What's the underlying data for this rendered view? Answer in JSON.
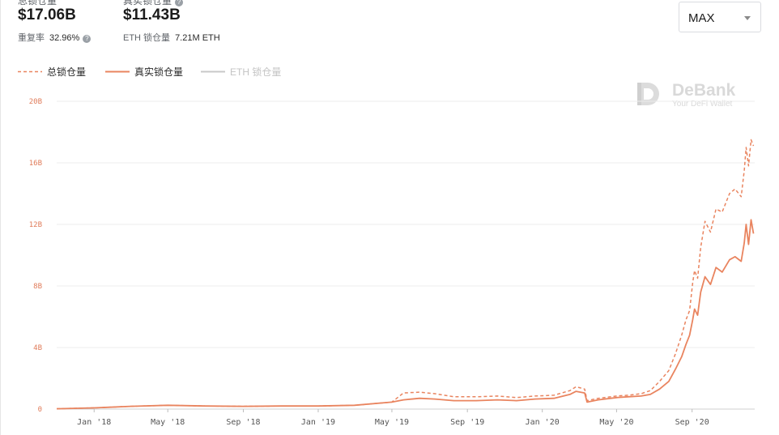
{
  "header": {
    "total": {
      "label": "总锁仓量",
      "value": "$17.06B",
      "sub_label": "重复率",
      "sub_value": "32.96%",
      "help_icon": "question-circle-icon"
    },
    "real": {
      "label": "真实锁仓量",
      "value": "$11.43B",
      "sub_label": "ETH 锁仓量",
      "sub_value": "7.21M ETH",
      "help_icon": "question-circle-icon"
    }
  },
  "range_select": {
    "value": "MAX",
    "icon": "caret-down-icon"
  },
  "legend": [
    {
      "name": "总锁仓量",
      "style": "dashed",
      "color": "#e9845f",
      "active": true
    },
    {
      "name": "真实锁仓量",
      "style": "solid",
      "color": "#e9845f",
      "active": true
    },
    {
      "name": "ETH  锁仓量",
      "style": "solid",
      "color": "#c8c8c8",
      "active": false
    }
  ],
  "watermark": {
    "brand": "DeBank",
    "tagline": "Your DeFi Wallet",
    "icon": "debank-logo-icon"
  },
  "chart_data": {
    "type": "line",
    "title": "",
    "xlabel": "",
    "ylabel": "",
    "y_unit": "B USD",
    "ylim": [
      0,
      20
    ],
    "y_ticks": [
      0,
      4,
      8,
      12,
      16,
      20
    ],
    "y_tick_labels": [
      "0",
      "4B",
      "8B",
      "12B",
      "16B",
      "20B"
    ],
    "xlim": [
      "2017-11-01",
      "2020-12-12"
    ],
    "x_ticks": [
      "2018-01-01",
      "2018-05-01",
      "2018-09-01",
      "2019-01-01",
      "2019-05-01",
      "2019-09-01",
      "2020-01-01",
      "2020-05-01",
      "2020-09-01"
    ],
    "x_tick_labels": [
      "Jan '18",
      "May '18",
      "Sep '18",
      "Jan '19",
      "May '19",
      "Sep '19",
      "Jan '20",
      "May '20",
      "Sep '20"
    ],
    "grid": true,
    "legend_position": "top-left",
    "series": [
      {
        "name": "总锁仓量",
        "style": "dashed",
        "color": "#e9845f",
        "x": [
          "2017-11-01",
          "2018-01-01",
          "2018-03-01",
          "2018-05-01",
          "2018-07-01",
          "2018-09-01",
          "2018-11-01",
          "2019-01-01",
          "2019-03-01",
          "2019-05-01",
          "2019-05-20",
          "2019-06-15",
          "2019-07-10",
          "2019-08-10",
          "2019-09-15",
          "2019-10-20",
          "2019-11-20",
          "2019-12-20",
          "2020-01-20",
          "2020-02-15",
          "2020-02-25",
          "2020-03-10",
          "2020-03-14",
          "2020-04-01",
          "2020-05-01",
          "2020-05-20",
          "2020-06-10",
          "2020-06-25",
          "2020-07-10",
          "2020-07-25",
          "2020-08-05",
          "2020-08-15",
          "2020-08-22",
          "2020-08-28",
          "2020-09-02",
          "2020-09-05",
          "2020-09-10",
          "2020-09-15",
          "2020-09-22",
          "2020-10-01",
          "2020-10-10",
          "2020-10-20",
          "2020-11-01",
          "2020-11-10",
          "2020-11-20",
          "2020-11-25",
          "2020-11-28",
          "2020-12-02",
          "2020-12-06",
          "2020-12-10"
        ],
        "y": [
          0.02,
          0.08,
          0.18,
          0.25,
          0.2,
          0.18,
          0.2,
          0.2,
          0.25,
          0.45,
          1.05,
          1.1,
          1.0,
          0.8,
          0.8,
          0.85,
          0.75,
          0.85,
          0.9,
          1.2,
          1.45,
          1.3,
          0.55,
          0.7,
          0.85,
          0.9,
          1.0,
          1.2,
          1.8,
          2.5,
          3.6,
          4.8,
          5.8,
          6.4,
          8.2,
          9.0,
          8.5,
          10.5,
          12.2,
          11.5,
          13.0,
          12.8,
          14.0,
          14.3,
          13.8,
          15.5,
          17.0,
          15.8,
          17.5,
          17.1
        ]
      },
      {
        "name": "真实锁仓量",
        "style": "solid",
        "color": "#e9845f",
        "x": [
          "2017-11-01",
          "2018-01-01",
          "2018-03-01",
          "2018-05-01",
          "2018-07-01",
          "2018-09-01",
          "2018-11-01",
          "2019-01-01",
          "2019-03-01",
          "2019-05-01",
          "2019-05-20",
          "2019-06-15",
          "2019-07-10",
          "2019-08-10",
          "2019-09-15",
          "2019-10-20",
          "2019-11-20",
          "2019-12-20",
          "2020-01-20",
          "2020-02-15",
          "2020-02-25",
          "2020-03-10",
          "2020-03-14",
          "2020-04-01",
          "2020-05-01",
          "2020-05-20",
          "2020-06-10",
          "2020-06-25",
          "2020-07-10",
          "2020-07-25",
          "2020-08-05",
          "2020-08-15",
          "2020-08-22",
          "2020-08-28",
          "2020-09-02",
          "2020-09-05",
          "2020-09-10",
          "2020-09-15",
          "2020-09-22",
          "2020-10-01",
          "2020-10-10",
          "2020-10-20",
          "2020-11-01",
          "2020-11-10",
          "2020-11-20",
          "2020-11-25",
          "2020-11-28",
          "2020-12-02",
          "2020-12-06",
          "2020-12-10"
        ],
        "y": [
          0.02,
          0.08,
          0.18,
          0.25,
          0.2,
          0.18,
          0.2,
          0.2,
          0.25,
          0.45,
          0.6,
          0.7,
          0.65,
          0.55,
          0.55,
          0.6,
          0.55,
          0.65,
          0.7,
          0.95,
          1.15,
          1.05,
          0.45,
          0.6,
          0.75,
          0.8,
          0.85,
          0.95,
          1.3,
          1.8,
          2.6,
          3.4,
          4.2,
          4.8,
          5.8,
          6.5,
          6.1,
          7.6,
          8.6,
          8.1,
          9.2,
          8.9,
          9.7,
          9.9,
          9.6,
          10.8,
          12.0,
          10.7,
          12.3,
          11.4
        ]
      }
    ]
  }
}
